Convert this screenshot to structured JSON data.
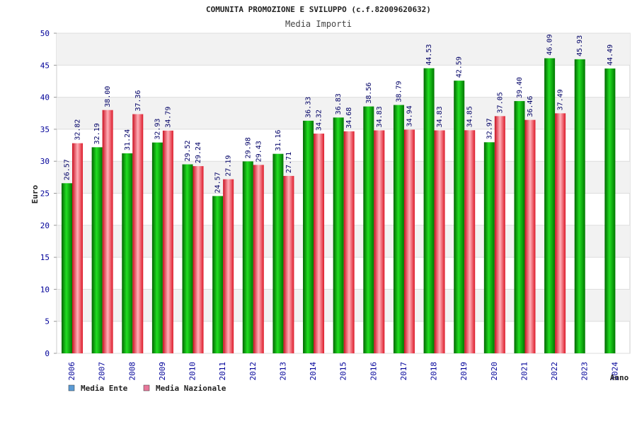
{
  "chart_data": {
    "type": "bar",
    "title": "COMUNITA PROMOZIONE E SVILUPPO (c.f.82009620632)",
    "subtitle": "Media Importi",
    "xlabel": "Anno",
    "ylabel": "Euro",
    "ylim": [
      0,
      50
    ],
    "yticks": [
      "0",
      "5",
      "10",
      "15",
      "20",
      "25",
      "30",
      "35",
      "40",
      "45",
      "50"
    ],
    "grid": "horizontal, alternating bands",
    "legend_position": "bottom-left",
    "categories": [
      "2006",
      "2007",
      "2008",
      "2009",
      "2010",
      "2011",
      "2012",
      "2013",
      "2014",
      "2015",
      "2016",
      "2017",
      "2018",
      "2019",
      "2020",
      "2021",
      "2022",
      "2023",
      "2024"
    ],
    "series": [
      {
        "name": "Media Ente",
        "color": "#00aa00",
        "legend_color": "#5b9bd5",
        "values": [
          26.57,
          32.19,
          31.24,
          32.93,
          29.52,
          24.57,
          29.98,
          31.16,
          36.33,
          36.83,
          38.56,
          38.79,
          44.53,
          42.59,
          32.97,
          39.4,
          46.09,
          45.93,
          44.49
        ],
        "labels": [
          "26.57",
          "32.19",
          "31.24",
          "32.93",
          "29.52",
          "24.57",
          "29.98",
          "31.16",
          "36.33",
          "36.83",
          "38.56",
          "38.79",
          "44.53",
          "42.59",
          "32.97",
          "39.40",
          "46.09",
          "45.93",
          "44.49"
        ]
      },
      {
        "name": "Media Nazionale",
        "color": "#ee2233",
        "legend_color": "#e8779a",
        "values": [
          32.82,
          38.0,
          37.36,
          34.79,
          29.24,
          27.19,
          29.43,
          27.71,
          34.32,
          34.68,
          34.83,
          34.94,
          34.83,
          34.85,
          37.05,
          36.46,
          37.49,
          null,
          null
        ],
        "labels": [
          "32.82",
          "38.00",
          "37.36",
          "34.79",
          "29.24",
          "27.19",
          "29.43",
          "27.71",
          "34.32",
          "34.68",
          "34.83",
          "34.94",
          "34.83",
          "34.85",
          "37.05",
          "36.46",
          "37.49",
          null,
          null
        ]
      }
    ]
  }
}
